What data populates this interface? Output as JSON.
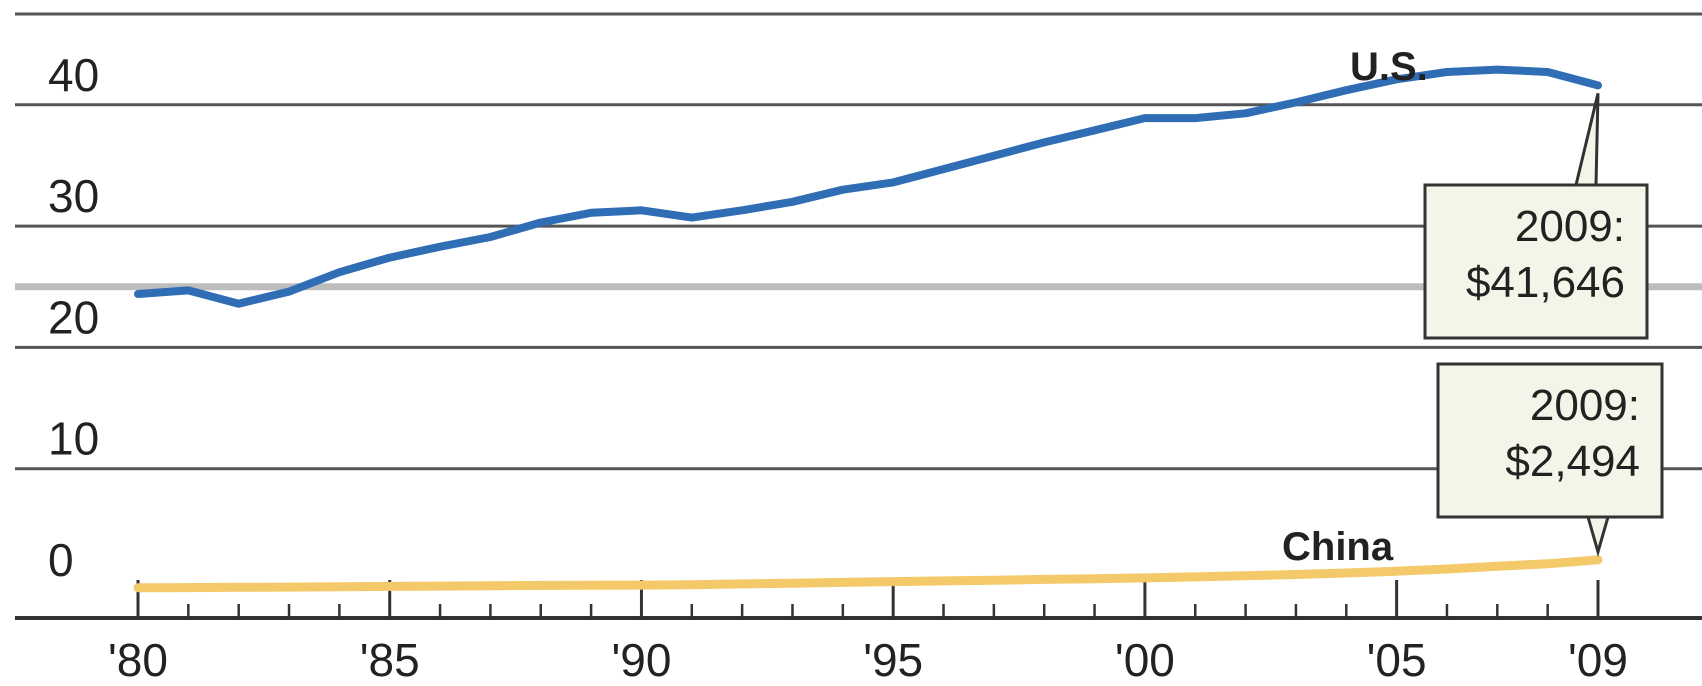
{
  "chart_data": {
    "type": "line",
    "x": [
      1980,
      1981,
      1982,
      1983,
      1984,
      1985,
      1986,
      1987,
      1988,
      1989,
      1990,
      1991,
      1992,
      1993,
      1994,
      1995,
      1996,
      1997,
      1998,
      1999,
      2000,
      2001,
      2002,
      2003,
      2004,
      2005,
      2006,
      2007,
      2008,
      2009
    ],
    "xticks": [
      1980,
      1985,
      1990,
      1995,
      2000,
      2005,
      2009
    ],
    "xtick_labels": [
      "'80",
      "'85",
      "'90",
      "'95",
      "'00",
      "'05",
      "'09"
    ],
    "yticks": [
      0,
      10,
      20,
      30,
      40
    ],
    "ytick_labels": [
      "0",
      "10",
      "20",
      "30",
      "40"
    ],
    "ylim": [
      -3,
      47
    ],
    "xlim": [
      1978.9,
      2011.2
    ],
    "grid": true,
    "series": [
      {
        "name": "U.S.",
        "color": "#2f6db5",
        "values": [
          24.4,
          24.7,
          23.6,
          24.6,
          26.2,
          27.4,
          28.3,
          29.1,
          30.3,
          31.1,
          31.3,
          30.7,
          31.3,
          32.0,
          33.0,
          33.6,
          34.7,
          35.8,
          36.9,
          37.9,
          38.9,
          38.9,
          39.3,
          40.2,
          41.2,
          42.1,
          42.7,
          42.9,
          42.7,
          41.6
        ]
      },
      {
        "name": "China",
        "color": "#f3c96a",
        "values": [
          0.19,
          0.2,
          0.22,
          0.24,
          0.27,
          0.3,
          0.32,
          0.35,
          0.38,
          0.39,
          0.4,
          0.44,
          0.5,
          0.56,
          0.63,
          0.69,
          0.75,
          0.81,
          0.87,
          0.93,
          1.0,
          1.08,
          1.17,
          1.28,
          1.4,
          1.55,
          1.73,
          1.96,
          2.16,
          2.49
        ]
      }
    ],
    "annotations": [
      {
        "series": "U.S.",
        "line1": "2009:",
        "line2": "$41,646"
      },
      {
        "series": "China",
        "line1": "2009:",
        "line2": "$2,494"
      }
    ]
  }
}
